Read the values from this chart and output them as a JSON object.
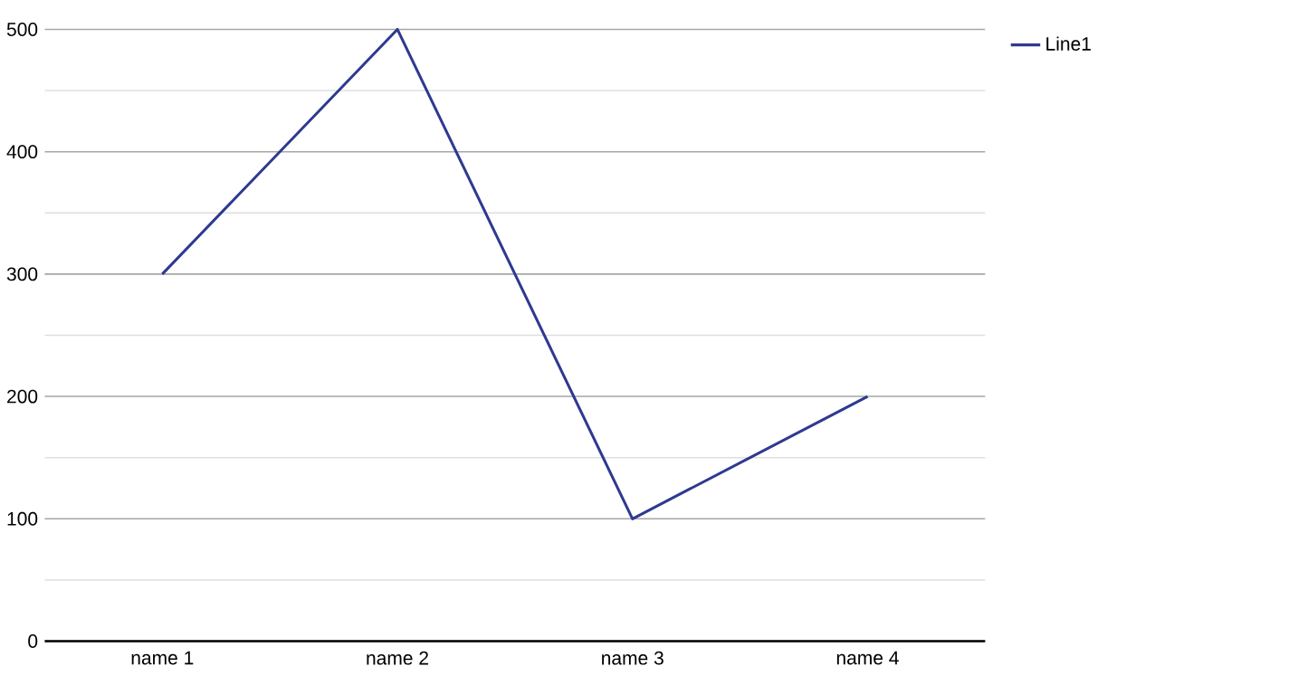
{
  "chart_data": {
    "type": "line",
    "categories": [
      "name 1",
      "name 2",
      "name 3",
      "name 4"
    ],
    "series": [
      {
        "name": "Line1",
        "color": "#2e3a8f",
        "values": [
          300,
          500,
          100,
          200
        ]
      }
    ],
    "ylim": [
      0,
      500
    ],
    "yticks": [
      0,
      100,
      200,
      300,
      400,
      500
    ],
    "grid": "y",
    "legend": "top right",
    "marker": "none",
    "line_style": "solid"
  }
}
